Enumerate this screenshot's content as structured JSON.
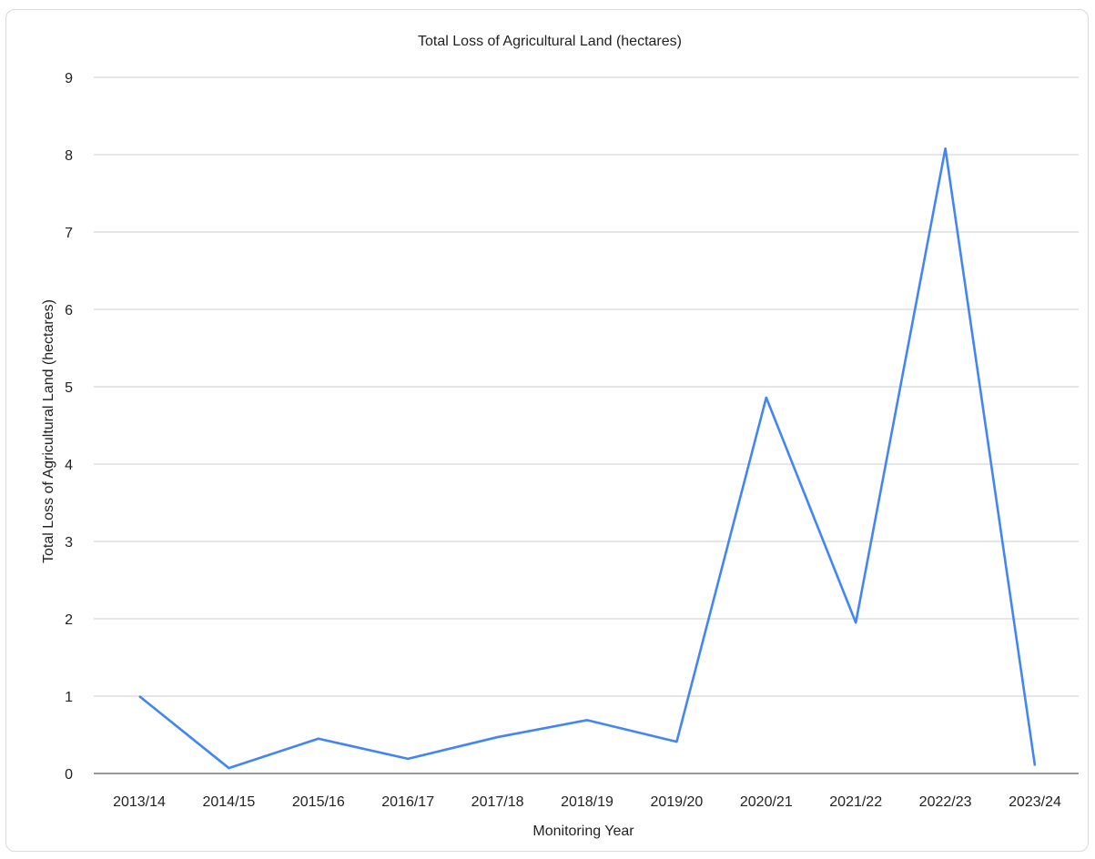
{
  "chart_data": {
    "type": "line",
    "title": "Total Loss of Agricultural Land (hectares)",
    "xlabel": "Monitoring Year",
    "ylabel": "Total Loss of Agricultural Land (hectares)",
    "categories": [
      "2013/14",
      "2014/15",
      "2015/16",
      "2016/17",
      "2017/18",
      "2018/19",
      "2019/20",
      "2020/21",
      "2021/22",
      "2022/23",
      "2023/24"
    ],
    "series": [
      {
        "values": [
          1.0,
          0.07,
          0.45,
          0.19,
          0.47,
          0.69,
          0.41,
          4.86,
          1.95,
          8.08,
          0.1
        ]
      }
    ],
    "ylim": [
      0,
      9
    ],
    "yticks": [
      "0",
      "1",
      "2",
      "3",
      "4",
      "5",
      "6",
      "7",
      "8",
      "9"
    ],
    "grid": true,
    "legend": "none",
    "colors": {
      "line": "#4285f4",
      "grid": "#cccccc",
      "baseline": "#333333"
    }
  }
}
